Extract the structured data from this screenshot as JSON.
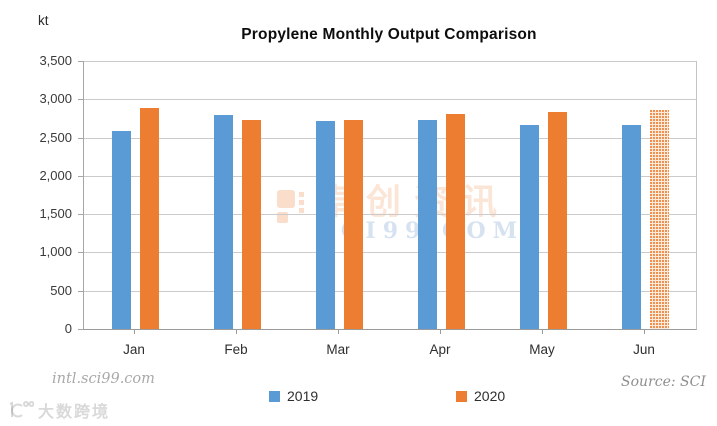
{
  "chart": {
    "unit_label": "kt",
    "title": "Propylene Monthly Output Comparison"
  },
  "chart_data": {
    "type": "bar",
    "title": "Propylene Monthly Output Comparison",
    "ylabel": "kt",
    "categories": [
      "Jan",
      "Feb",
      "Mar",
      "Apr",
      "May",
      "Jun"
    ],
    "series": [
      {
        "name": "2019",
        "color": "#5B9BD5",
        "values": [
          2580,
          2795,
          2720,
          2730,
          2665,
          2660
        ],
        "value_styles": [
          "solid",
          "solid",
          "solid",
          "solid",
          "solid",
          "solid"
        ]
      },
      {
        "name": "2020",
        "color": "#ED7D31",
        "values": [
          2890,
          2735,
          2725,
          2815,
          2835,
          2865
        ],
        "value_styles": [
          "solid",
          "solid",
          "solid",
          "solid",
          "solid",
          "dotted"
        ]
      }
    ],
    "ylim": [
      0,
      3500
    ],
    "ytick_step": 500,
    "ytick_labels": [
      "3,500",
      "3,000",
      "2,500",
      "2,000",
      "1,500",
      "1,000",
      "500",
      "0"
    ],
    "grid": true,
    "legend_position": "bottom"
  },
  "legend": {
    "items": [
      {
        "label": "2019",
        "color": "#5B9BD5"
      },
      {
        "label": "2020",
        "color": "#ED7D31"
      }
    ]
  },
  "watermark": {
    "center_cn": "卓创资讯",
    "center_en": "SCI99.COM",
    "site": "intl.sci99.com",
    "source": "Source: SCI",
    "bottom_left_text": "大数跨境"
  },
  "colors": {
    "series_2019": "#5B9BD5",
    "series_2020": "#ED7D31",
    "gridline": "#CBCBCB",
    "axis": "#9B9B9B"
  }
}
